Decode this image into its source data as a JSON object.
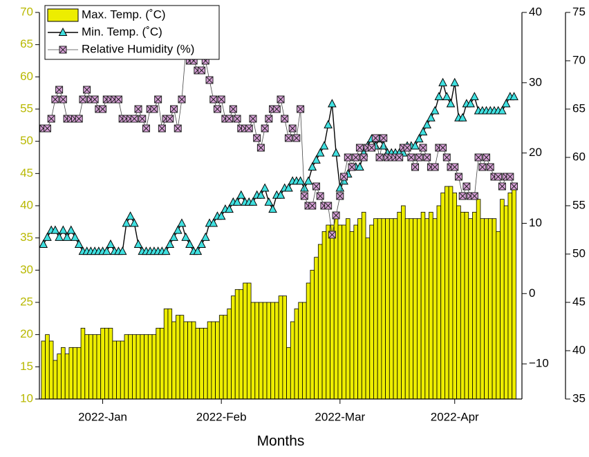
{
  "chart_data": {
    "type": "bar",
    "x_label": "Months",
    "x": [
      1,
      2,
      3,
      4,
      5,
      6,
      7,
      8,
      9,
      10,
      11,
      12,
      13,
      14,
      15,
      16,
      17,
      18,
      19,
      20,
      21,
      22,
      23,
      24,
      25,
      26,
      27,
      28,
      29,
      30,
      31,
      32,
      33,
      34,
      35,
      36,
      37,
      38,
      39,
      40,
      41,
      42,
      43,
      44,
      45,
      46,
      47,
      48,
      49,
      50,
      51,
      52,
      53,
      54,
      55,
      56,
      57,
      58,
      59,
      60,
      61,
      62,
      63,
      64,
      65,
      66,
      67,
      68,
      69,
      70,
      71,
      72,
      73,
      74,
      75,
      76,
      77,
      78,
      79,
      80,
      81,
      82,
      83,
      84,
      85,
      86,
      87,
      88,
      89,
      90,
      91,
      92,
      93,
      94,
      95,
      96,
      97,
      98,
      99,
      100,
      101,
      102,
      103,
      104,
      105,
      106,
      107,
      108,
      109,
      110,
      111,
      112,
      113,
      114,
      115,
      116,
      117,
      118,
      119,
      120
    ],
    "xlim": [
      0,
      122
    ],
    "xticks": [
      {
        "value": 16,
        "label": "2022-Jan"
      },
      {
        "value": 46,
        "label": "2022-Feb"
      },
      {
        "value": 76,
        "label": "2022-Mar"
      },
      {
        "value": 105,
        "label": "2022-Apr"
      }
    ],
    "ylim": [
      10,
      70
    ],
    "yticks": [
      10,
      15,
      20,
      25,
      30,
      35,
      40,
      45,
      50,
      55,
      60,
      65,
      70
    ],
    "y2lim": [
      -15,
      40
    ],
    "y2ticks": [
      {
        "value": -10,
        "label": "−10"
      },
      0,
      10,
      20,
      30,
      40
    ],
    "y3lim": [
      35,
      75
    ],
    "y3ticks": [
      35,
      40,
      45,
      50,
      55,
      60,
      65,
      70,
      75
    ],
    "legend": "upper left",
    "series": [
      {
        "name": "Max. Temp. (˚C)",
        "type": "bar",
        "color": "#eded00",
        "values": [
          19,
          20,
          19,
          16,
          17,
          18,
          17,
          18,
          18,
          18,
          21,
          20,
          20,
          20,
          20,
          21,
          21,
          21,
          19,
          19,
          19,
          20,
          20,
          20,
          20,
          20,
          20,
          20,
          20,
          21,
          21,
          24,
          24,
          22,
          23,
          23,
          22,
          22,
          22,
          21,
          21,
          21,
          22,
          22,
          22,
          23,
          23,
          24,
          26,
          27,
          27,
          28,
          28,
          25,
          25,
          25,
          25,
          25,
          25,
          25,
          26,
          26,
          18,
          22,
          24,
          25,
          25,
          28,
          30,
          32,
          34,
          36,
          37,
          37,
          38,
          37,
          37,
          38,
          36,
          37,
          38,
          39,
          35,
          37,
          38,
          38,
          38,
          38,
          38,
          38,
          39,
          40,
          38,
          38,
          38,
          38,
          39,
          38,
          39,
          38,
          40,
          42,
          43,
          43,
          42,
          40,
          39,
          39,
          38,
          39,
          41,
          38,
          38,
          38,
          38,
          36,
          41,
          40,
          42,
          43
        ]
      },
      {
        "name": "Min. Temp. (˚C)",
        "type": "line",
        "axis": "y2",
        "color": "#40e0e0",
        "values": [
          7,
          8,
          9,
          9,
          8,
          9,
          8,
          9,
          8,
          7,
          6,
          6,
          6,
          6,
          6,
          6,
          6,
          7,
          6,
          6,
          6,
          10,
          11,
          10,
          7,
          6,
          6,
          6,
          6,
          6,
          6,
          6,
          7,
          8,
          9,
          10,
          8,
          7,
          6,
          6,
          7,
          8,
          10,
          10,
          11,
          11,
          12,
          12,
          13,
          13,
          14,
          13,
          13,
          13,
          14,
          14,
          15,
          13,
          12,
          14,
          14,
          15,
          15,
          16,
          16,
          16,
          15,
          16,
          18,
          19,
          20,
          21,
          24,
          27,
          20,
          15,
          16,
          17,
          18,
          18,
          18,
          20,
          21,
          22,
          21,
          22,
          21,
          20,
          20,
          20,
          20,
          20,
          21,
          21,
          21,
          22,
          23,
          24,
          25,
          26,
          28,
          30,
          28,
          27,
          30,
          25,
          25,
          27,
          27,
          28,
          26,
          26,
          26,
          26,
          26,
          26,
          26,
          27,
          28,
          28
        ]
      },
      {
        "name": "Relative Humidity (%)",
        "type": "line",
        "axis": "y3",
        "color": "#d8a0d8",
        "values": [
          63,
          63,
          64,
          66,
          67,
          66,
          64,
          64,
          64,
          64,
          66,
          67,
          66,
          66,
          65,
          65,
          66,
          66,
          66,
          66,
          64,
          64,
          64,
          64,
          65,
          64,
          63,
          65,
          65,
          66,
          63,
          64,
          64,
          65,
          63,
          66,
          71,
          70,
          70,
          69,
          69,
          70,
          68,
          66,
          65,
          66,
          64,
          64,
          65,
          64,
          63,
          63,
          63,
          64,
          62,
          61,
          63,
          64,
          65,
          65,
          66,
          64,
          62,
          63,
          62,
          65,
          56,
          55,
          55,
          57,
          56,
          55,
          55,
          52,
          54,
          56,
          58,
          60,
          59,
          60,
          61,
          60,
          61,
          61,
          62,
          60,
          62,
          60,
          60,
          60,
          60,
          61,
          61,
          60,
          59,
          60,
          61,
          60,
          59,
          59,
          61,
          61,
          60,
          59,
          59,
          58,
          56,
          57,
          56,
          56,
          60,
          59,
          60,
          59,
          58,
          58,
          57,
          58,
          58,
          57
        ]
      }
    ]
  }
}
